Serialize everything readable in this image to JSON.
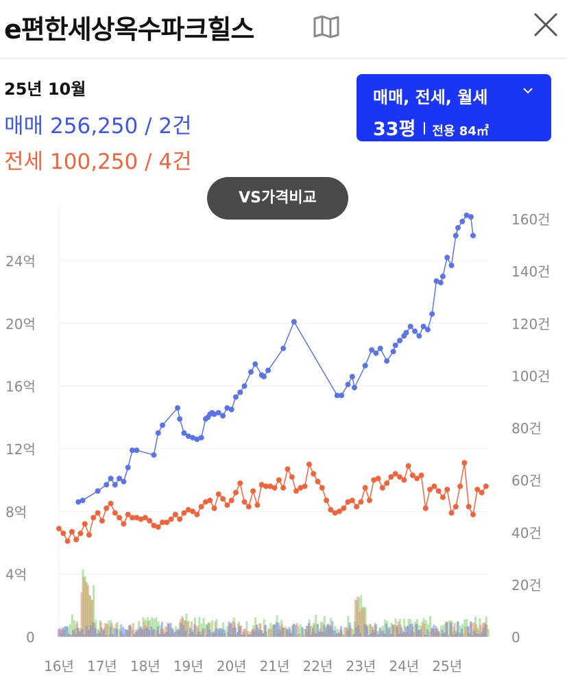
{
  "header": {
    "title": "e편한세상옥수파크힐스",
    "map_icon": "map-book-icon",
    "close_icon": "close-icon"
  },
  "summary": {
    "date": "25년 10월",
    "sale": {
      "label": "매매",
      "value": "256,250 / 2건",
      "color": "#3d55e8"
    },
    "jeonse": {
      "label": "전세",
      "value": "100,250 / 4건",
      "color": "#f0643c"
    }
  },
  "filter": {
    "types": "매매, 전세, 월세",
    "pyeong": "33평",
    "area": "전용 84㎡"
  },
  "vs_button": "VS가격비교",
  "chart_data": {
    "type": "line",
    "x_unit": "year",
    "xlim": [
      2016.0,
      2025.95
    ],
    "x_ticks": [
      "16년",
      "17년",
      "18년",
      "19년",
      "20년",
      "21년",
      "22년",
      "23년",
      "24년",
      "25년"
    ],
    "y_left": {
      "ticks": [
        "0",
        "4억",
        "8억",
        "12억",
        "16억",
        "20억",
        "24억"
      ],
      "ylim": [
        0,
        27.5
      ],
      "unit": "억"
    },
    "y_right": {
      "ticks": [
        "0",
        "20건",
        "40건",
        "60건",
        "80건",
        "100건",
        "120건",
        "140건",
        "160건"
      ],
      "ylim": [
        0,
        165
      ],
      "unit": "건"
    },
    "grid": "horizontal",
    "series": [
      {
        "name": "매매",
        "color": "#5a73e6",
        "axis": "left",
        "x": [
          2016.45,
          2016.55,
          2016.9,
          2017.1,
          2017.2,
          2017.3,
          2017.4,
          2017.5,
          2017.6,
          2017.7,
          2017.8,
          2018.2,
          2018.3,
          2018.4,
          2018.75,
          2018.8,
          2018.9,
          2019.0,
          2019.1,
          2019.2,
          2019.3,
          2019.4,
          2019.45,
          2019.5,
          2019.55,
          2019.6,
          2019.7,
          2019.8,
          2019.9,
          2020.0,
          2020.1,
          2020.2,
          2020.3,
          2020.45,
          2020.55,
          2020.7,
          2020.75,
          2020.85,
          2021.2,
          2021.45,
          2022.45,
          2022.55,
          2022.7,
          2022.8,
          2022.85,
          2023.1,
          2023.25,
          2023.35,
          2023.45,
          2023.6,
          2023.75,
          2023.8,
          2023.9,
          2024.0,
          2024.05,
          2024.15,
          2024.25,
          2024.35,
          2024.45,
          2024.55,
          2024.65,
          2024.75,
          2024.85,
          2024.9,
          2025.0,
          2025.1,
          2025.2,
          2025.25,
          2025.35,
          2025.45,
          2025.55,
          2025.6
        ],
        "y": [
          8.6,
          8.7,
          9.3,
          9.7,
          10.1,
          9.7,
          10.1,
          9.9,
          10.8,
          11.9,
          11.9,
          11.6,
          13.0,
          13.5,
          14.6,
          13.9,
          13.0,
          12.8,
          12.7,
          12.6,
          12.7,
          13.9,
          14.0,
          14.2,
          14.3,
          14.2,
          14.3,
          14.1,
          14.6,
          14.5,
          15.3,
          15.6,
          16.0,
          16.9,
          17.4,
          16.7,
          16.6,
          17.0,
          18.4,
          20.1,
          15.4,
          15.4,
          16.1,
          16.6,
          15.9,
          17.3,
          18.3,
          18.1,
          18.4,
          17.6,
          18.2,
          18.6,
          18.9,
          19.2,
          19.4,
          19.8,
          19.5,
          19.2,
          19.8,
          19.6,
          20.6,
          22.7,
          22.6,
          23.0,
          24.2,
          23.7,
          25.6,
          26.1,
          26.5,
          26.9,
          26.8,
          25.6
        ],
        "visible_to_x": 2025.6
      },
      {
        "name": "전세",
        "color": "#f0643c",
        "axis": "left",
        "x": [
          2016.0,
          2016.1,
          2016.2,
          2016.3,
          2016.4,
          2016.5,
          2016.6,
          2016.7,
          2016.8,
          2016.9,
          2017.0,
          2017.1,
          2017.2,
          2017.3,
          2017.4,
          2017.5,
          2017.6,
          2017.7,
          2017.8,
          2017.9,
          2018.0,
          2018.1,
          2018.2,
          2018.3,
          2018.4,
          2018.5,
          2018.6,
          2018.7,
          2018.8,
          2018.9,
          2019.0,
          2019.1,
          2019.2,
          2019.3,
          2019.4,
          2019.5,
          2019.6,
          2019.7,
          2019.8,
          2019.9,
          2020.0,
          2020.1,
          2020.2,
          2020.3,
          2020.4,
          2020.5,
          2020.6,
          2020.7,
          2020.8,
          2020.9,
          2021.0,
          2021.1,
          2021.2,
          2021.3,
          2021.4,
          2021.5,
          2021.6,
          2021.7,
          2021.8,
          2021.9,
          2022.0,
          2022.1,
          2022.2,
          2022.3,
          2022.4,
          2022.5,
          2022.6,
          2022.7,
          2022.8,
          2022.9,
          2023.0,
          2023.1,
          2023.2,
          2023.3,
          2023.4,
          2023.5,
          2023.6,
          2023.7,
          2023.8,
          2023.9,
          2024.0,
          2024.1,
          2024.2,
          2024.3,
          2024.4,
          2024.5,
          2024.6,
          2024.7,
          2024.8,
          2024.9,
          2025.0,
          2025.1,
          2025.2,
          2025.3,
          2025.4,
          2025.5,
          2025.6,
          2025.7,
          2025.8,
          2025.9
        ],
        "y": [
          6.9,
          6.6,
          6.1,
          6.7,
          6.2,
          6.6,
          7.2,
          6.5,
          7.6,
          7.9,
          7.4,
          8.2,
          8.5,
          7.9,
          7.6,
          7.2,
          7.8,
          7.6,
          7.6,
          7.5,
          7.6,
          7.4,
          7.1,
          7.0,
          7.3,
          7.3,
          7.5,
          7.8,
          7.5,
          7.9,
          8.1,
          8.0,
          7.8,
          8.3,
          8.6,
          8.7,
          8.2,
          9.1,
          8.8,
          8.4,
          8.7,
          9.2,
          9.8,
          8.6,
          8.3,
          9.3,
          8.4,
          9.7,
          9.6,
          9.6,
          9.5,
          10.0,
          9.5,
          10.7,
          10.2,
          9.3,
          9.5,
          9.6,
          11.0,
          10.4,
          9.9,
          9.5,
          8.7,
          8.1,
          7.9,
          8.0,
          8.2,
          8.6,
          8.7,
          8.3,
          8.6,
          9.5,
          8.7,
          10.0,
          10.1,
          9.5,
          9.8,
          10.2,
          10.4,
          10.2,
          10.0,
          10.9,
          10.3,
          10.1,
          10.3,
          8.2,
          9.4,
          9.6,
          9.3,
          8.9,
          9.4,
          7.9,
          8.3,
          9.6,
          11.1,
          8.3,
          7.8,
          9.4,
          9.2,
          9.6
        ],
        "visible_to_x": 2025.9
      }
    ],
    "volume_series": [
      {
        "name": "매매 거래량",
        "color": "#6c86ef",
        "axis": "right"
      },
      {
        "name": "전세 거래량",
        "color": "#f2866a",
        "axis": "right"
      },
      {
        "name": "월세 거래량",
        "color": "#7ccf6a",
        "axis": "right"
      }
    ]
  }
}
